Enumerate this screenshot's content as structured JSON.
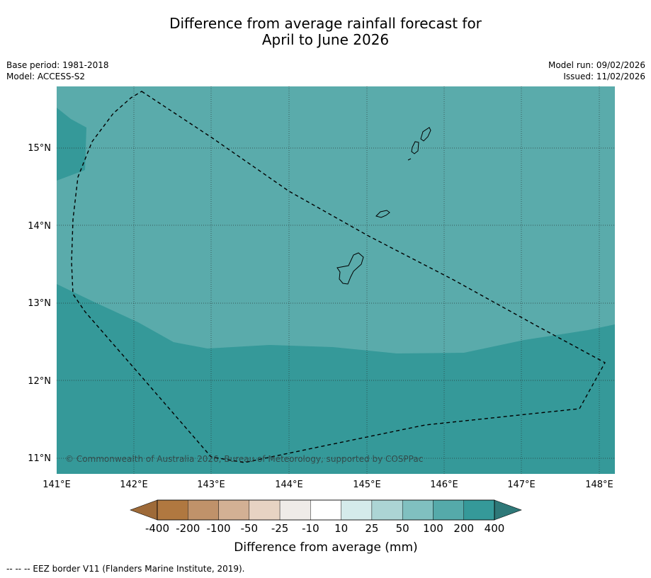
{
  "title": {
    "line1": "Difference from average rainfall forecast for",
    "line2": "April to June 2026"
  },
  "meta": {
    "base_period": "Base period: 1981-2018",
    "model": "Model: ACCESS-S2",
    "model_run": "Model run: 09/02/2026",
    "issued": "Issued: 11/02/2026"
  },
  "map": {
    "copyright": "© Commonwealth of Australia 2026, Bureau of Meteorology, supported by COSPPac",
    "lat_labels": [
      "15°N",
      "14°N",
      "13°N",
      "12°N",
      "11°N"
    ],
    "lon_labels": [
      "141°E",
      "142°E",
      "143°E",
      "144°E",
      "145°E",
      "146°E",
      "147°E",
      "148°E"
    ],
    "colors": {
      "class_100_200": "#5aabab",
      "class_200_400": "#359999",
      "coastline": "#000000",
      "eez_border": "#000000"
    }
  },
  "colorbar": {
    "labels": [
      "-400",
      "-200",
      "-100",
      "-50",
      "-25",
      "-10",
      "10",
      "25",
      "50",
      "100",
      "200",
      "400"
    ],
    "colors": [
      "#9e6a38",
      "#b07840",
      "#c0926a",
      "#d3b094",
      "#e7d3c3",
      "#efebe8",
      "#ffffff",
      "#d5ebeb",
      "#acd5d5",
      "#80c0c0",
      "#55aaaa",
      "#359999",
      "#2e7878"
    ],
    "title": "Difference from average (mm)"
  },
  "footnote": "--  --  -- EEZ border V11 (Flanders Marine Institute, 2019)."
}
